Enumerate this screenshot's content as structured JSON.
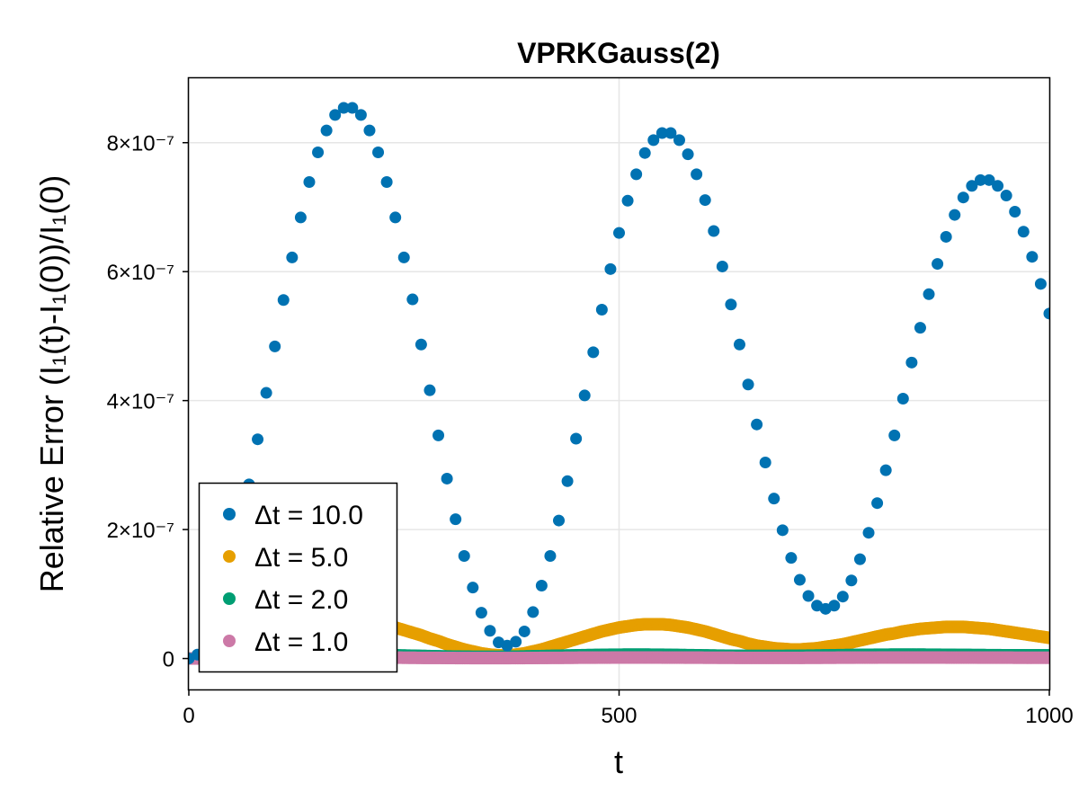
{
  "chart_data": {
    "type": "scatter",
    "title": "VPRKGauss(2)",
    "xlabel": "t",
    "ylabel": "Relative Error (I₁(t)-I₁(0))/I₁(0)",
    "xlim": [
      0,
      1000
    ],
    "ylim": [
      -4.8e-08,
      9e-07
    ],
    "x_ticks": [
      0,
      500,
      1000
    ],
    "x_tick_labels": [
      "0",
      "500",
      "1000"
    ],
    "y_ticks": [
      0,
      2e-07,
      4e-07,
      6e-07,
      8e-07
    ],
    "y_tick_labels": [
      "0",
      "2×10⁻⁷",
      "4×10⁻⁷",
      "6×10⁻⁷",
      "8×10⁻⁷"
    ],
    "grid": true,
    "legend_position": "bottom-left",
    "series": [
      {
        "name": "Δt = 10.0",
        "color": "#0072b2",
        "x": [
          0,
          10,
          20,
          30,
          40,
          50,
          60,
          70,
          80,
          90,
          100,
          110,
          120,
          130,
          140,
          150,
          160,
          170,
          180,
          190,
          200,
          210,
          220,
          230,
          240,
          250,
          260,
          270,
          280,
          290,
          300,
          310,
          320,
          330,
          340,
          350,
          360,
          370,
          380,
          390,
          400,
          410,
          420,
          430,
          440,
          450,
          460,
          470,
          480,
          490,
          500,
          510,
          520,
          530,
          540,
          550,
          560,
          570,
          580,
          590,
          600,
          610,
          620,
          630,
          640,
          650,
          660,
          670,
          680,
          690,
          700,
          710,
          720,
          730,
          740,
          750,
          760,
          770,
          780,
          790,
          800,
          810,
          820,
          830,
          840,
          850,
          860,
          870,
          880,
          890,
          900,
          910,
          920,
          930,
          940,
          950,
          960,
          970,
          980,
          990,
          1000
        ],
        "y": [
          0,
          6e-09,
          2.3e-08,
          5e-08,
          8.6e-08,
          1.32e-07,
          1.85e-07,
          2.7e-07,
          3.4e-07,
          4.12e-07,
          4.84e-07,
          5.56e-07,
          6.22e-07,
          6.84e-07,
          7.39e-07,
          7.85e-07,
          8.19e-07,
          8.43e-07,
          8.54e-07,
          8.54e-07,
          8.43e-07,
          8.19e-07,
          7.85e-07,
          7.39e-07,
          6.84e-07,
          6.22e-07,
          5.57e-07,
          4.87e-07,
          4.16e-07,
          3.46e-07,
          2.79e-07,
          2.16e-07,
          1.59e-07,
          1.1e-07,
          7.1e-08,
          4.3e-08,
          2.5e-08,
          2e-08,
          2.6e-08,
          4.2e-08,
          7.2e-08,
          1.13e-07,
          1.59e-07,
          2.14e-07,
          2.75e-07,
          3.41e-07,
          4.08e-07,
          4.75e-07,
          5.41e-07,
          6.04e-07,
          6.6e-07,
          7.1e-07,
          7.51e-07,
          7.84e-07,
          8.04e-07,
          8.15e-07,
          8.15e-07,
          8.04e-07,
          7.82e-07,
          7.51e-07,
          7.11e-07,
          6.63e-07,
          6.08e-07,
          5.49e-07,
          4.87e-07,
          4.25e-07,
          3.63e-07,
          3.04e-07,
          2.48e-07,
          1.99e-07,
          1.56e-07,
          1.22e-07,
          9.7e-08,
          8.2e-08,
          7.7e-08,
          8.2e-08,
          9.6e-08,
          1.21e-07,
          1.54e-07,
          1.95e-07,
          2.41e-07,
          2.92e-07,
          3.46e-07,
          4.03e-07,
          4.59e-07,
          5.13e-07,
          5.65e-07,
          6.12e-07,
          6.54e-07,
          6.88e-07,
          7.15e-07,
          7.33e-07,
          7.42e-07,
          7.42e-07,
          7.33e-07,
          7.18e-07,
          6.93e-07,
          6.62e-07,
          6.23e-07,
          5.81e-07,
          5.35e-07
        ]
      },
      {
        "name": "Δt = 5.0",
        "color": "#e69f00",
        "x": [
          0,
          10,
          20,
          30,
          40,
          50,
          60,
          70,
          80,
          90,
          100,
          110,
          120,
          130,
          140,
          150,
          160,
          170,
          180,
          190,
          200,
          210,
          220,
          230,
          240,
          250,
          260,
          270,
          280,
          290,
          300,
          310,
          320,
          330,
          340,
          350,
          360,
          370,
          380,
          390,
          400,
          410,
          420,
          430,
          440,
          450,
          460,
          470,
          480,
          490,
          500,
          510,
          520,
          530,
          540,
          550,
          560,
          570,
          580,
          590,
          600,
          610,
          620,
          630,
          640,
          650,
          660,
          670,
          680,
          690,
          700,
          710,
          720,
          730,
          740,
          750,
          760,
          770,
          780,
          790,
          800,
          810,
          820,
          830,
          840,
          850,
          860,
          870,
          880,
          890,
          900,
          910,
          920,
          930,
          940,
          950,
          960,
          970,
          980,
          990,
          1000
        ],
        "y": [
          0,
          3e-10,
          1.3e-09,
          2.9e-09,
          5.1e-09,
          7.8e-09,
          1.1e-08,
          1.5e-08,
          1.9e-08,
          2.4e-08,
          2.8e-08,
          3.3e-08,
          3.7e-08,
          4.1e-08,
          4.5e-08,
          4.8e-08,
          5.1e-08,
          5.3e-08,
          5.5e-08,
          5.6e-08,
          5.6e-08,
          5.5e-08,
          5.3e-08,
          5.1e-08,
          4.8e-08,
          4.4e-08,
          4e-08,
          3.6e-08,
          3.1e-08,
          2.7e-08,
          2.2e-08,
          1.8e-08,
          1.4e-08,
          1.1e-08,
          8e-09,
          6e-09,
          5e-09,
          5e-09,
          6e-09,
          8e-09,
          1.1e-08,
          1.4e-08,
          1.8e-08,
          2.2e-08,
          2.6e-08,
          3e-08,
          3.4e-08,
          3.8e-08,
          4.2e-08,
          4.5e-08,
          4.8e-08,
          5e-08,
          5.2e-08,
          5.3e-08,
          5.3e-08,
          5.3e-08,
          5.2e-08,
          5e-08,
          4.8e-08,
          4.5e-08,
          4.2e-08,
          3.8e-08,
          3.4e-08,
          3e-08,
          2.7e-08,
          2.3e-08,
          2e-08,
          1.8e-08,
          1.6e-08,
          1.5e-08,
          1.4e-08,
          1.4e-08,
          1.5e-08,
          1.6e-08,
          1.8e-08,
          2e-08,
          2.2e-08,
          2.5e-08,
          2.8e-08,
          3.1e-08,
          3.4e-08,
          3.7e-08,
          3.9e-08,
          4.2e-08,
          4.4e-08,
          4.6e-08,
          4.7e-08,
          4.8e-08,
          4.9e-08,
          4.9e-08,
          4.9e-08,
          4.8e-08,
          4.7e-08,
          4.6e-08,
          4.4e-08,
          4.2e-08,
          4e-08,
          3.8e-08,
          3.6e-08,
          3.4e-08,
          3.2e-08
        ]
      },
      {
        "name": "Δt = 2.0",
        "color": "#009e73",
        "x": [
          0,
          10,
          20,
          30,
          40,
          50,
          60,
          70,
          80,
          90,
          100,
          110,
          120,
          130,
          140,
          150,
          160,
          170,
          180,
          190,
          200,
          210,
          220,
          230,
          240,
          250,
          260,
          270,
          280,
          290,
          300,
          310,
          320,
          330,
          340,
          350,
          360,
          370,
          380,
          390,
          400,
          410,
          420,
          430,
          440,
          450,
          460,
          470,
          480,
          490,
          500,
          510,
          520,
          530,
          540,
          550,
          560,
          570,
          580,
          590,
          600,
          610,
          620,
          630,
          640,
          650,
          660,
          670,
          680,
          690,
          700,
          710,
          720,
          730,
          740,
          750,
          760,
          770,
          780,
          790,
          800,
          810,
          820,
          830,
          840,
          850,
          860,
          870,
          880,
          890,
          900,
          910,
          920,
          930,
          940,
          950,
          960,
          970,
          980,
          990,
          1000
        ],
        "y": [
          0,
          1e-10,
          2e-10,
          4e-10,
          7e-10,
          1e-09,
          1.4e-09,
          1.8e-09,
          2.3e-09,
          2.8e-09,
          3.3e-09,
          3.8e-09,
          4.2e-09,
          4.6e-09,
          5e-09,
          5.3e-09,
          5.5e-09,
          5.7e-09,
          5.8e-09,
          5.8e-09,
          5.7e-09,
          5.6e-09,
          5.4e-09,
          5.2e-09,
          4.9e-09,
          4.6e-09,
          4.3e-09,
          4e-09,
          3.7e-09,
          3.4e-09,
          3.1e-09,
          2.9e-09,
          2.7e-09,
          2.6e-09,
          2.5e-09,
          2.5e-09,
          2.6e-09,
          2.7e-09,
          2.9e-09,
          3.1e-09,
          3.4e-09,
          3.7e-09,
          4e-09,
          4.3e-09,
          4.6e-09,
          4.9e-09,
          5.2e-09,
          5.4e-09,
          5.6e-09,
          5.8e-09,
          5.9e-09,
          6e-09,
          6e-09,
          6e-09,
          5.9e-09,
          5.8e-09,
          5.6e-09,
          5.4e-09,
          5.2e-09,
          5e-09,
          4.8e-09,
          4.6e-09,
          4.4e-09,
          4.2e-09,
          4.1e-09,
          4e-09,
          3.9e-09,
          3.9e-09,
          3.9e-09,
          4e-09,
          4.1e-09,
          4.2e-09,
          4.4e-09,
          4.6e-09,
          4.8e-09,
          5e-09,
          5.2e-09,
          5.4e-09,
          5.6e-09,
          5.7e-09,
          5.8e-09,
          5.9e-09,
          6e-09,
          6e-09,
          6e-09,
          6e-09,
          5.9e-09,
          5.8e-09,
          5.7e-09,
          5.6e-09,
          5.5e-09,
          5.4e-09,
          5.3e-09,
          5.2e-09,
          5.1e-09,
          5e-09,
          5e-09,
          4.9e-09,
          4.9e-09,
          4.9e-09,
          5e-09
        ]
      },
      {
        "name": "Δt = 1.0",
        "color": "#cc79a7",
        "x": [
          0,
          10,
          20,
          30,
          40,
          50,
          60,
          70,
          80,
          90,
          100,
          110,
          120,
          130,
          140,
          150,
          160,
          170,
          180,
          190,
          200,
          210,
          220,
          230,
          240,
          250,
          260,
          270,
          280,
          290,
          300,
          310,
          320,
          330,
          340,
          350,
          360,
          370,
          380,
          390,
          400,
          410,
          420,
          430,
          440,
          450,
          460,
          470,
          480,
          490,
          500,
          510,
          520,
          530,
          540,
          550,
          560,
          570,
          580,
          590,
          600,
          610,
          620,
          630,
          640,
          650,
          660,
          670,
          680,
          690,
          700,
          710,
          720,
          730,
          740,
          750,
          760,
          770,
          780,
          790,
          800,
          810,
          820,
          830,
          840,
          850,
          860,
          870,
          880,
          890,
          900,
          910,
          920,
          930,
          940,
          950,
          960,
          970,
          980,
          990,
          1000
        ],
        "y": [
          0,
          0,
          1e-10,
          1e-10,
          2e-10,
          3e-10,
          4e-10,
          5e-10,
          6e-10,
          7e-10,
          8e-10,
          9e-10,
          1e-09,
          1.1e-09,
          1.2e-09,
          1.3e-09,
          1.3e-09,
          1.4e-09,
          1.4e-09,
          1.4e-09,
          1.4e-09,
          1.4e-09,
          1.4e-09,
          1.3e-09,
          1.3e-09,
          1.2e-09,
          1.1e-09,
          1e-09,
          9e-10,
          9e-10,
          8e-10,
          7e-10,
          7e-10,
          6e-10,
          6e-10,
          6e-10,
          6e-10,
          6e-10,
          7e-10,
          7e-10,
          8e-10,
          9e-10,
          1e-09,
          1e-09,
          1.1e-09,
          1.2e-09,
          1.3e-09,
          1.3e-09,
          1.4e-09,
          1.4e-09,
          1.5e-09,
          1.5e-09,
          1.5e-09,
          1.5e-09,
          1.5e-09,
          1.4e-09,
          1.4e-09,
          1.4e-09,
          1.3e-09,
          1.3e-09,
          1.2e-09,
          1.2e-09,
          1.1e-09,
          1.1e-09,
          1e-09,
          1e-09,
          1e-09,
          1e-09,
          1e-09,
          1e-09,
          1e-09,
          1e-09,
          1.1e-09,
          1.1e-09,
          1.2e-09,
          1.2e-09,
          1.3e-09,
          1.3e-09,
          1.4e-09,
          1.4e-09,
          1.4e-09,
          1.5e-09,
          1.5e-09,
          1.5e-09,
          1.5e-09,
          1.5e-09,
          1.5e-09,
          1.5e-09,
          1.4e-09,
          1.4e-09,
          1.4e-09,
          1.4e-09,
          1.3e-09,
          1.3e-09,
          1.3e-09,
          1.3e-09,
          1.2e-09,
          1.2e-09,
          1.2e-09,
          1.2e-09,
          1.2e-09
        ]
      }
    ]
  }
}
